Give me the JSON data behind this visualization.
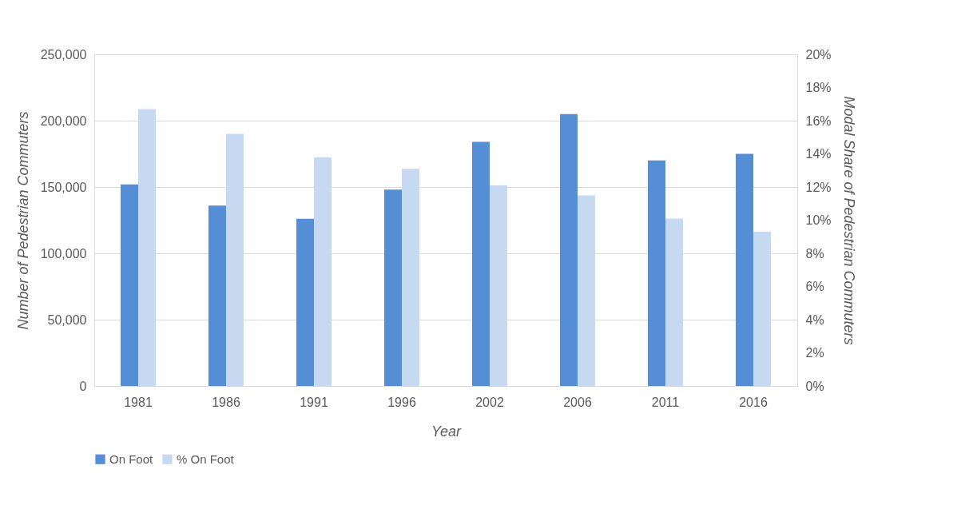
{
  "chart_data": {
    "type": "bar",
    "xlabel": "Year",
    "ylabel": "Number of Pedestrian Commuters",
    "y2label": "Modal Share of Pedestrian Commuters",
    "categories": [
      "1981",
      "1986",
      "1991",
      "1996",
      "2002",
      "2006",
      "2011",
      "2016"
    ],
    "series": [
      {
        "name": "On Foot",
        "color": "#558ed5",
        "values": [
          152000,
          136000,
          126000,
          148000,
          184000,
          205000,
          170000,
          175000
        ]
      },
      {
        "name": "% On Foot",
        "color": "#c6d9f1",
        "axis": "y2",
        "values": [
          16.7,
          15.2,
          13.8,
          13.1,
          12.1,
          11.5,
          10.1,
          9.3
        ]
      }
    ],
    "ylim": [
      0,
      250000
    ],
    "yticks": [
      {
        "value": 0,
        "label": "0"
      },
      {
        "value": 50000,
        "label": "50,000"
      },
      {
        "value": 100000,
        "label": "100,000"
      },
      {
        "value": 150000,
        "label": "150,000"
      },
      {
        "value": 200000,
        "label": "200,000"
      },
      {
        "value": 250000,
        "label": "250,000"
      }
    ],
    "y2lim": [
      0,
      20
    ],
    "y2ticks": [
      {
        "value": 0,
        "label": "0%"
      },
      {
        "value": 2,
        "label": "2%"
      },
      {
        "value": 4,
        "label": "4%"
      },
      {
        "value": 6,
        "label": "6%"
      },
      {
        "value": 8,
        "label": "8%"
      },
      {
        "value": 10,
        "label": "10%"
      },
      {
        "value": 12,
        "label": "12%"
      },
      {
        "value": 14,
        "label": "14%"
      },
      {
        "value": 16,
        "label": "16%"
      },
      {
        "value": 18,
        "label": "18%"
      },
      {
        "value": 20,
        "label": "20%"
      }
    ],
    "grid": "y",
    "legend": "bottom"
  }
}
